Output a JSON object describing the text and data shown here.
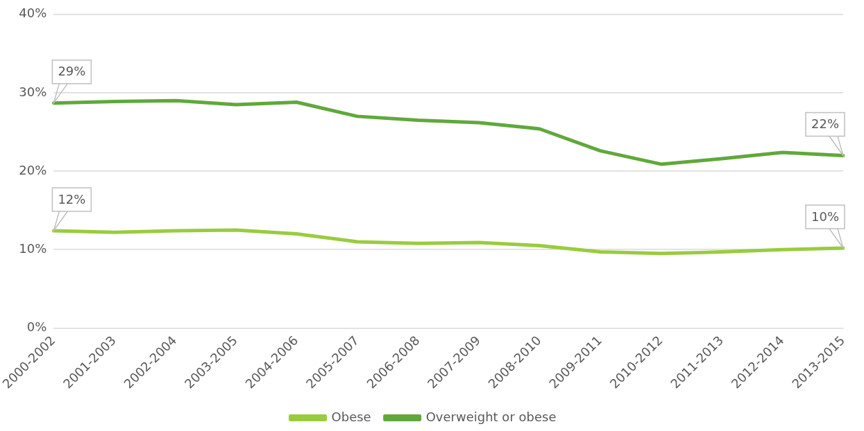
{
  "chart_data": {
    "type": "line",
    "categories": [
      "2000-2002",
      "2001-2003",
      "2002-2004",
      "2003-2005",
      "2004-2006",
      "2005-2007",
      "2006-2008",
      "2007-2009",
      "2008-2010",
      "2009-2011",
      "2010-2012",
      "2011-2013",
      "2012-2014",
      "2013-2015"
    ],
    "series": [
      {
        "name": "Obese",
        "color": "#99cc3d",
        "values": [
          12.4,
          12.2,
          12.4,
          12.5,
          12.0,
          11.0,
          10.8,
          10.9,
          10.5,
          9.7,
          9.5,
          9.7,
          10.0,
          10.2
        ]
      },
      {
        "name": "Overweight or obese",
        "color": "#60a83b",
        "values": [
          28.7,
          28.9,
          29.0,
          28.5,
          28.8,
          27.0,
          26.5,
          26.2,
          25.4,
          22.6,
          20.9,
          21.6,
          22.4,
          22.0
        ]
      }
    ],
    "ylim": [
      0,
      40
    ],
    "yticks": [
      {
        "value": 0,
        "label": "0%"
      },
      {
        "value": 10,
        "label": "10%"
      },
      {
        "value": 20,
        "label": "20%"
      },
      {
        "value": 30,
        "label": "30%"
      },
      {
        "value": 40,
        "label": "40%"
      }
    ],
    "grid": "y",
    "legend": "bottom",
    "marker": "none",
    "line_style": "solid",
    "annotations": [
      {
        "text": "29%",
        "x": "2000-2002",
        "y": 28.7
      },
      {
        "text": "22%",
        "x": "2013-2015",
        "y": 22.0
      },
      {
        "text": "12%",
        "x": "2000-2002",
        "y": 12.4
      },
      {
        "text": "10%",
        "x": "2013-2015",
        "y": 10.2
      }
    ]
  }
}
